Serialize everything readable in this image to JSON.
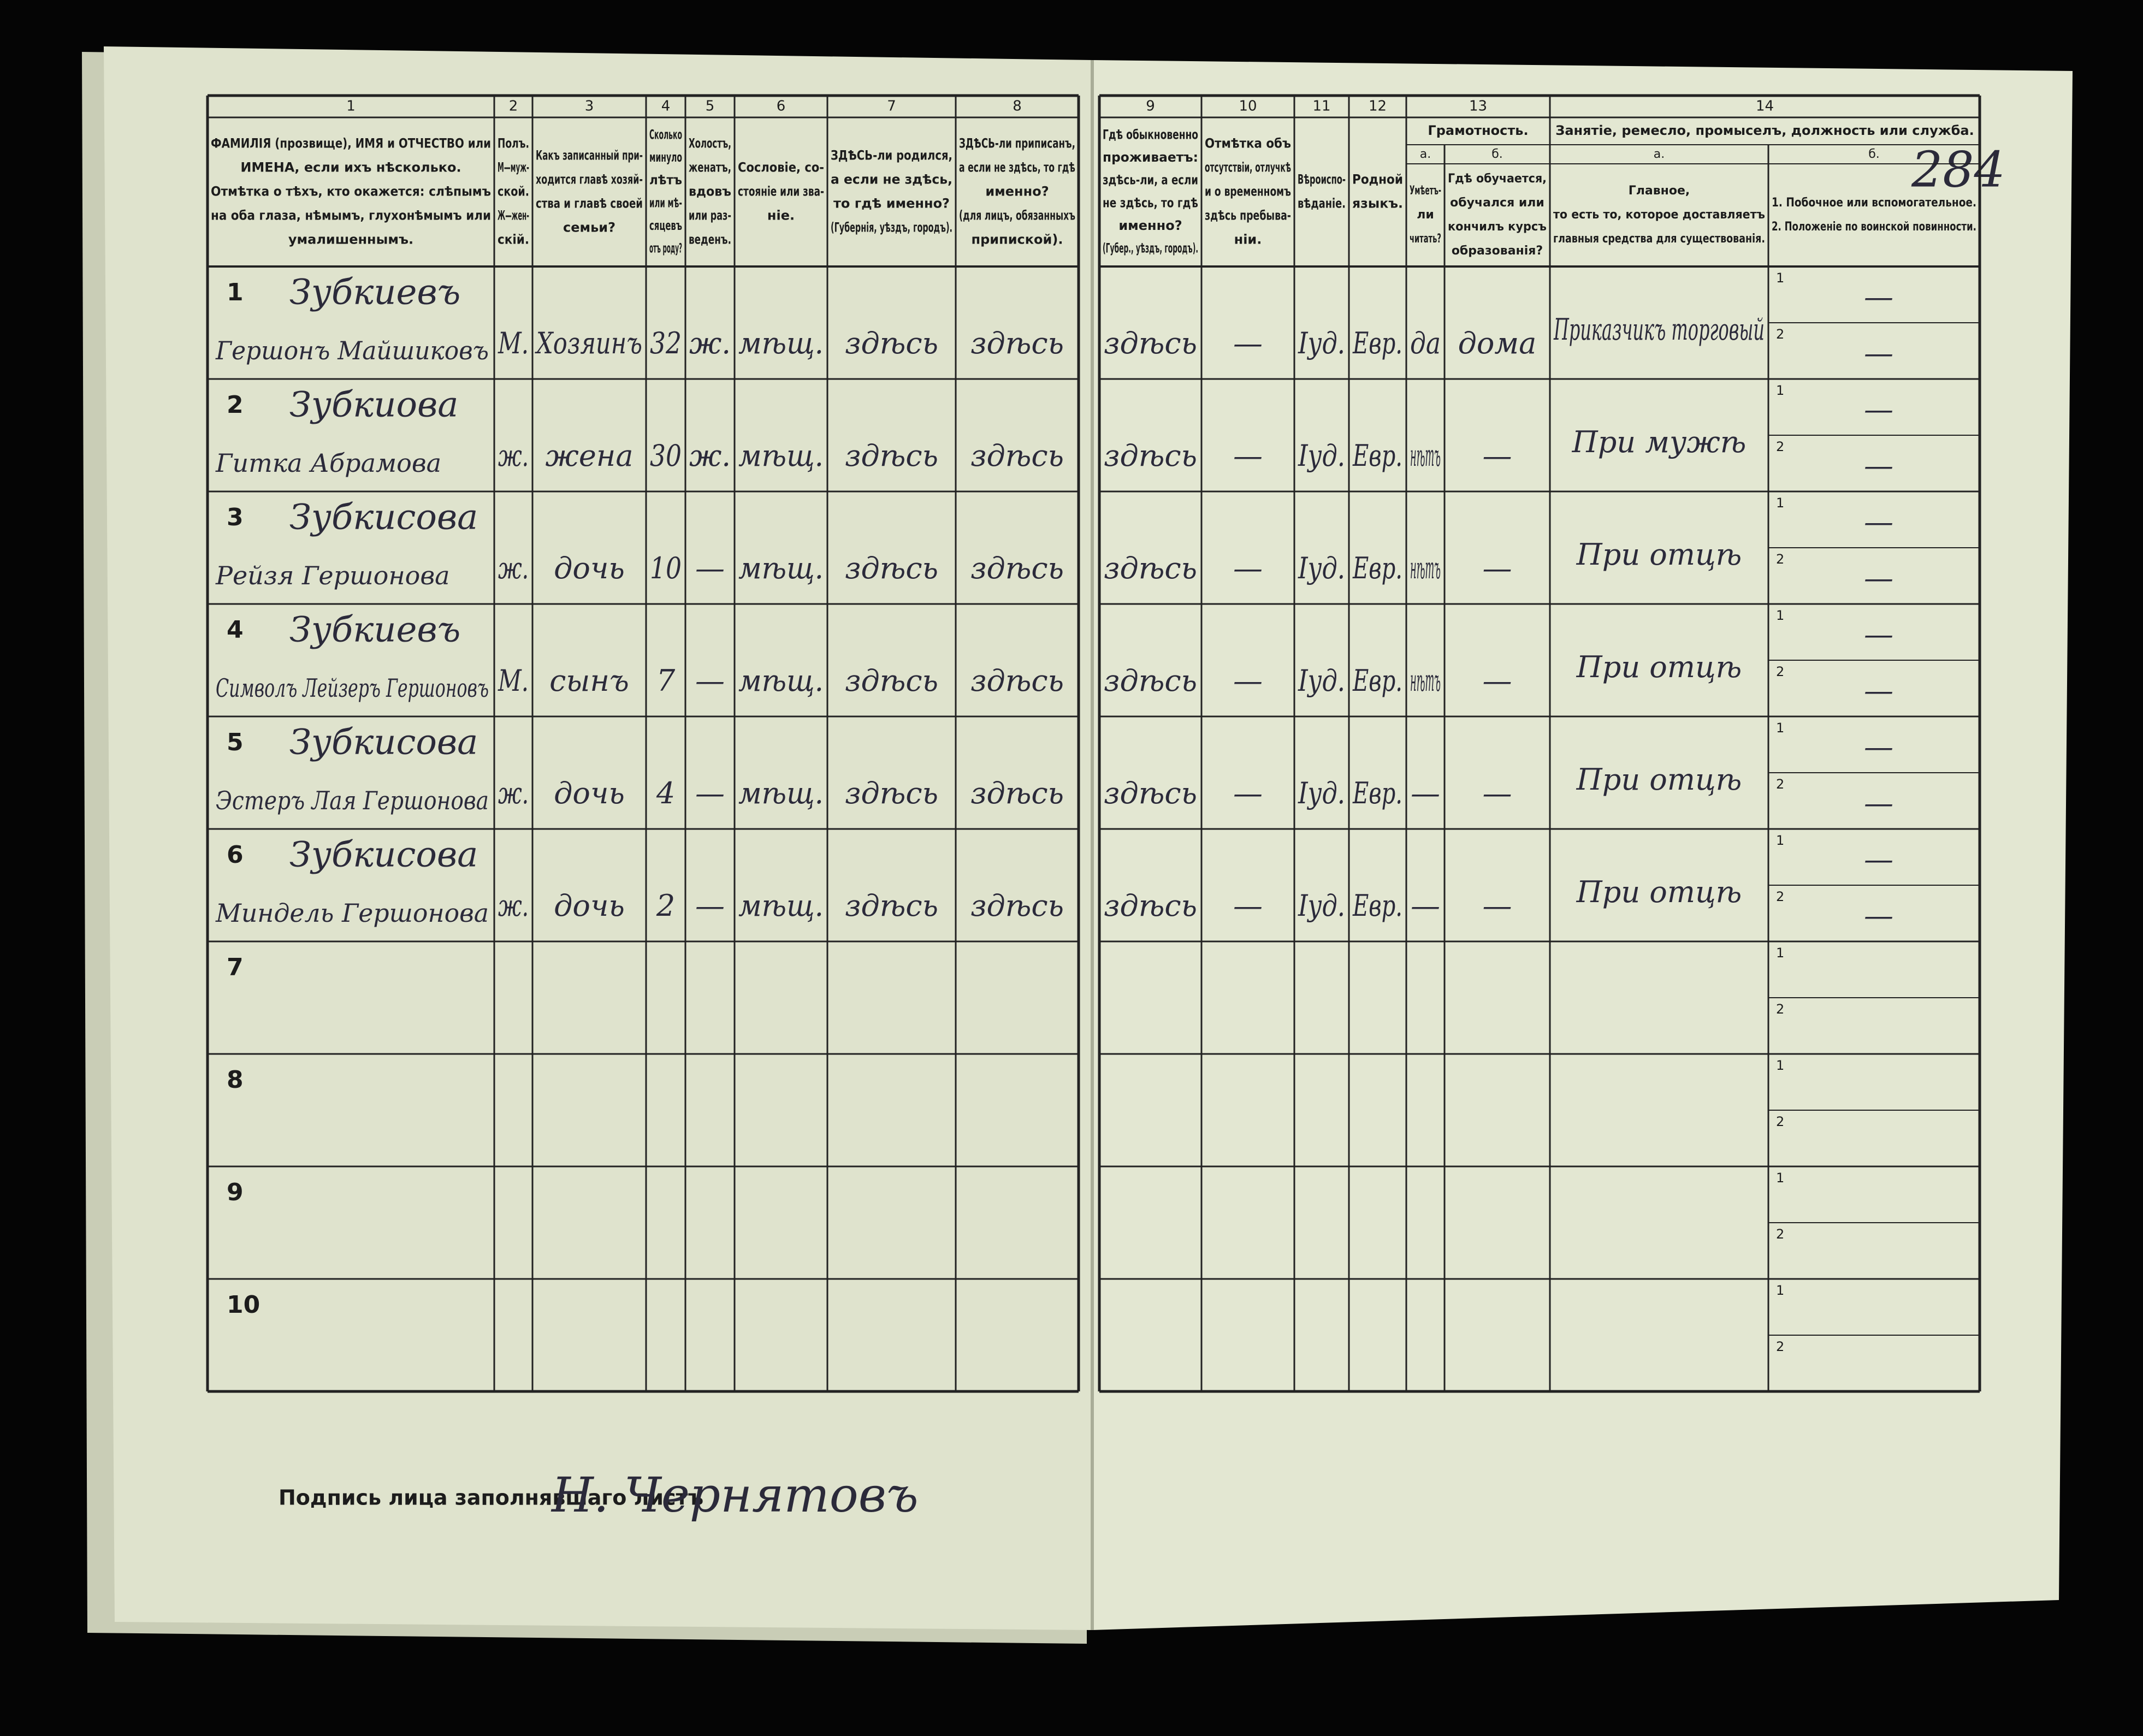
{
  "page_number": "284",
  "header": {
    "columns": [
      {
        "number": "1",
        "lines": [
          "ФАМИЛІЯ (прозвище), ИМЯ и ОТЧЕСТВО или",
          "ИМЕНА, если ихъ нѣсколько.",
          "Отмѣтка о тѣхъ, кто окажется: слѣпымъ",
          "на оба глаза, нѣмымъ, глухонѣмымъ или",
          "умалишеннымъ."
        ]
      },
      {
        "number": "2",
        "lines": [
          "Полъ.",
          "М—муж-",
          "ской.",
          "Ж—жен-",
          "скій."
        ]
      },
      {
        "number": "3",
        "lines": [
          "Какъ записанный при-",
          "ходится главѣ хозяй-",
          "ства и главѣ своей",
          "семьи?"
        ]
      },
      {
        "number": "4",
        "lines": [
          "Сколько",
          "минуло",
          "лѣтъ",
          "или мѣ-",
          "сяцевъ",
          "отъ роду?"
        ]
      },
      {
        "number": "5",
        "lines": [
          "Холостъ,",
          "женатъ,",
          "вдовъ",
          "или раз-",
          "веденъ."
        ]
      },
      {
        "number": "6",
        "lines": [
          "Сословіе, со-",
          "стояніе или зва-",
          "ніе."
        ]
      },
      {
        "number": "7",
        "lines": [
          "ЗДѢСЬ-ли родился,",
          "а если не здѣсь,",
          "то гдѣ именно?",
          "(Губернія, уѣздъ, городъ)."
        ]
      },
      {
        "number": "8",
        "lines": [
          "ЗДѢСЬ-ли приписанъ,",
          "а если не здѣсь, то гдѣ",
          "именно?",
          "(для лицъ, обязанныхъ",
          "припиской)."
        ]
      },
      {
        "number": "9",
        "lines": [
          "Гдѣ обыкновенно",
          "проживаетъ:",
          "здѣсь-ли, а если",
          "не здѣсь, то гдѣ",
          "именно?",
          "(Губер., уѣздъ, городъ)."
        ]
      },
      {
        "number": "10",
        "lines": [
          "Отмѣтка объ",
          "отсутствіи, отлучкѣ",
          "и о временномъ",
          "здѣсь пребыва-",
          "ніи."
        ]
      },
      {
        "number": "11",
        "lines": [
          "Вѣроиспо-",
          "вѣданіе."
        ]
      },
      {
        "number": "12",
        "lines": [
          "Родной",
          "языкъ."
        ]
      },
      {
        "number": "13",
        "title": "Грамотность.",
        "sub": [
          {
            "label": "а.",
            "lines": [
              "Умѣетъ-",
              "ли",
              "читать?"
            ]
          },
          {
            "label": "б.",
            "lines": [
              "Гдѣ обучается,",
              "обучался или",
              "кончилъ курсъ",
              "образованія?"
            ]
          }
        ]
      },
      {
        "number": "14",
        "title": "Занятіе, ремесло, промыселъ, должность или служба.",
        "sub": [
          {
            "label": "а.",
            "lines": [
              "Главное,",
              "то есть то, которое доставляетъ",
              "главныя средства для существованія."
            ]
          },
          {
            "label": "б.",
            "lines": [
              "1. Побочное или вспомогательное.",
              "2. Положеніе по воинской повинности."
            ]
          }
        ]
      }
    ]
  },
  "sublabels": [
    "1",
    "2"
  ],
  "rows": [
    {
      "number": "1",
      "surname": "Зубкиевъ",
      "name": "Гершонъ Майшиковъ",
      "sex": "М.",
      "relation": "Хозяинъ",
      "age": "32",
      "marital": "ж.",
      "estate": "мѣщ.",
      "born": "здѣсь",
      "registered": "здѣсь",
      "residence": "здѣсь",
      "absence": "—",
      "religion": "Іуд.",
      "language": "Евр.",
      "reads": "да",
      "education": "дома",
      "occupation": "Приказчикъ торговый",
      "secondary": [
        "—",
        "—"
      ]
    },
    {
      "number": "2",
      "surname": "Зубкиова",
      "name": "Гитка Абрамова",
      "sex": "ж.",
      "relation": "жена",
      "age": "30",
      "marital": "ж.",
      "estate": "мѣщ.",
      "born": "здѣсь",
      "registered": "здѣсь",
      "residence": "здѣсь",
      "absence": "—",
      "religion": "Іуд.",
      "language": "Евр.",
      "reads": "нѣтъ",
      "education": "—",
      "occupation": "При мужѣ",
      "secondary": [
        "—",
        "—"
      ]
    },
    {
      "number": "3",
      "surname": "Зубкисова",
      "name": "Рейзя Гершонова",
      "sex": "ж.",
      "relation": "дочь",
      "age": "10",
      "marital": "—",
      "estate": "мѣщ.",
      "born": "здѣсь",
      "registered": "здѣсь",
      "residence": "здѣсь",
      "absence": "—",
      "religion": "Іуд.",
      "language": "Евр.",
      "reads": "нѣтъ",
      "education": "—",
      "occupation": "При отцѣ",
      "secondary": [
        "—",
        "—"
      ]
    },
    {
      "number": "4",
      "surname": "Зубкиевъ",
      "name": "Символъ Лейзеръ Гершоновъ",
      "sex": "М.",
      "relation": "сынъ",
      "age": "7",
      "marital": "—",
      "estate": "мѣщ.",
      "born": "здѣсь",
      "registered": "здѣсь",
      "residence": "здѣсь",
      "absence": "—",
      "religion": "Іуд.",
      "language": "Евр.",
      "reads": "нѣтъ",
      "education": "—",
      "occupation": "При отцѣ",
      "secondary": [
        "—",
        "—"
      ]
    },
    {
      "number": "5",
      "surname": "Зубкисова",
      "name": "Эстеръ Лая Гершонова",
      "sex": "ж.",
      "relation": "дочь",
      "age": "4",
      "marital": "—",
      "estate": "мѣщ.",
      "born": "здѣсь",
      "registered": "здѣсь",
      "residence": "здѣсь",
      "absence": "—",
      "religion": "Іуд.",
      "language": "Евр.",
      "reads": "—",
      "education": "—",
      "occupation": "При отцѣ",
      "secondary": [
        "—",
        "—"
      ]
    },
    {
      "number": "6",
      "surname": "Зубкисова",
      "name": "Миндель Гершонова",
      "sex": "ж.",
      "relation": "дочь",
      "age": "2",
      "marital": "—",
      "estate": "мѣщ.",
      "born": "здѣсь",
      "registered": "здѣсь",
      "residence": "здѣсь",
      "absence": "—",
      "religion": "Іуд.",
      "language": "Евр.",
      "reads": "—",
      "education": "—",
      "occupation": "При отцѣ",
      "secondary": [
        "—",
        "—"
      ]
    },
    {
      "number": "7"
    },
    {
      "number": "8"
    },
    {
      "number": "9"
    },
    {
      "number": "10"
    }
  ],
  "footer": {
    "signature_label": "Подпись лица заполнявшаго листъ",
    "signature": "Н. Чернятовъ"
  }
}
